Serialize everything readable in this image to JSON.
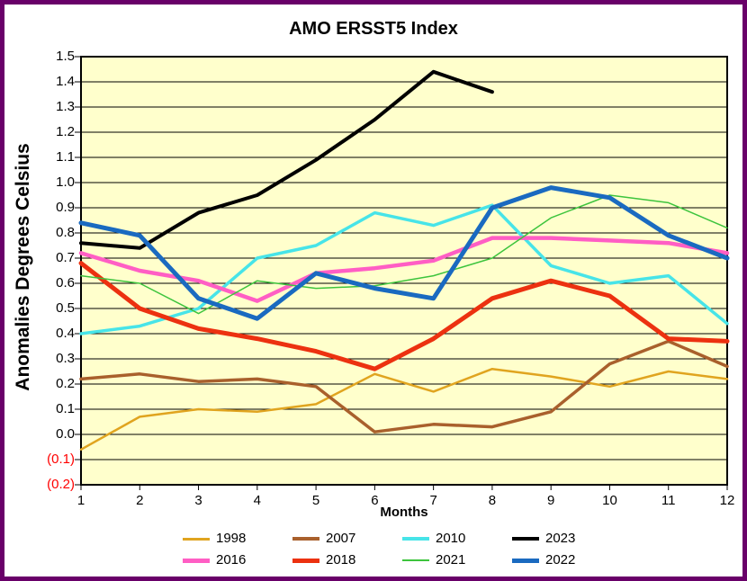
{
  "title": "AMO ERSST5 Index",
  "colors": {
    "frame_border": "#690069",
    "plot_background": "#FFFFCC",
    "grid": "#000000",
    "axis": "#000000",
    "negative_tick": "#FF0000"
  },
  "y_axis": {
    "title": "Anomalies Degrees Celsius",
    "tick_labels": [
      "1.5",
      "1.4",
      "1.3",
      "1.2",
      "1.1",
      "1.0",
      "0.9",
      "0.8",
      "0.7",
      "0.6",
      "0.5",
      "0.4",
      "0.3",
      "0.2",
      "0.1",
      "0.0",
      "(0.1)",
      "(0.2)"
    ]
  },
  "x_axis": {
    "title": "Months",
    "tick_labels": [
      "1",
      "2",
      "3",
      "4",
      "5",
      "6",
      "7",
      "8",
      "9",
      "10",
      "11",
      "12"
    ]
  },
  "legend": {
    "items": [
      "1998",
      "2007",
      "2010",
      "2023",
      "2016",
      "2018",
      "2021",
      "2022"
    ]
  },
  "chart_data": {
    "type": "line",
    "title": "AMO ERSST5 Index",
    "xlabel": "Months",
    "ylabel": "Anomalies Degrees Celsius",
    "x": [
      1,
      2,
      3,
      4,
      5,
      6,
      7,
      8,
      9,
      10,
      11,
      12
    ],
    "ylim": [
      -0.2,
      1.5
    ],
    "ytick_step": 0.1,
    "grid": true,
    "legend_position": "bottom",
    "series": [
      {
        "name": "1998",
        "color": "#E0A41F",
        "width": 2.5,
        "values": [
          -0.06,
          0.07,
          0.1,
          0.09,
          0.12,
          0.24,
          0.17,
          0.26,
          0.23,
          0.19,
          0.25,
          0.22
        ]
      },
      {
        "name": "2007",
        "color": "#A9602C",
        "width": 3.5,
        "values": [
          0.22,
          0.24,
          0.21,
          0.22,
          0.19,
          0.01,
          0.04,
          0.03,
          0.09,
          0.28,
          0.37,
          0.27
        ]
      },
      {
        "name": "2010",
        "color": "#47E4E8",
        "width": 3.5,
        "values": [
          0.4,
          0.43,
          0.5,
          0.7,
          0.75,
          0.88,
          0.83,
          0.91,
          0.67,
          0.6,
          0.63,
          0.44
        ]
      },
      {
        "name": "2016",
        "color": "#FF5EC4",
        "width": 4.5,
        "values": [
          0.72,
          0.65,
          0.61,
          0.53,
          0.64,
          0.66,
          0.69,
          0.78,
          0.78,
          0.77,
          0.76,
          0.72
        ]
      },
      {
        "name": "2018",
        "color": "#EC3110",
        "width": 5,
        "values": [
          0.68,
          0.5,
          0.42,
          0.38,
          0.33,
          0.26,
          0.38,
          0.54,
          0.61,
          0.55,
          0.38,
          0.37
        ]
      },
      {
        "name": "2021",
        "color": "#3DC43D",
        "width": 1.5,
        "values": [
          0.63,
          0.6,
          0.48,
          0.61,
          0.58,
          0.59,
          0.63,
          0.7,
          0.86,
          0.95,
          0.92,
          0.82
        ]
      },
      {
        "name": "2023",
        "color": "#000000",
        "width": 4,
        "values": [
          0.76,
          0.74,
          0.88,
          0.95,
          1.09,
          1.25,
          1.44,
          1.36,
          null,
          null,
          null,
          null
        ]
      },
      {
        "name": "2022",
        "color": "#1A6AC0",
        "width": 5,
        "values": [
          0.84,
          0.79,
          0.54,
          0.46,
          0.64,
          0.58,
          0.54,
          0.9,
          0.98,
          0.94,
          0.79,
          0.7
        ]
      }
    ]
  }
}
